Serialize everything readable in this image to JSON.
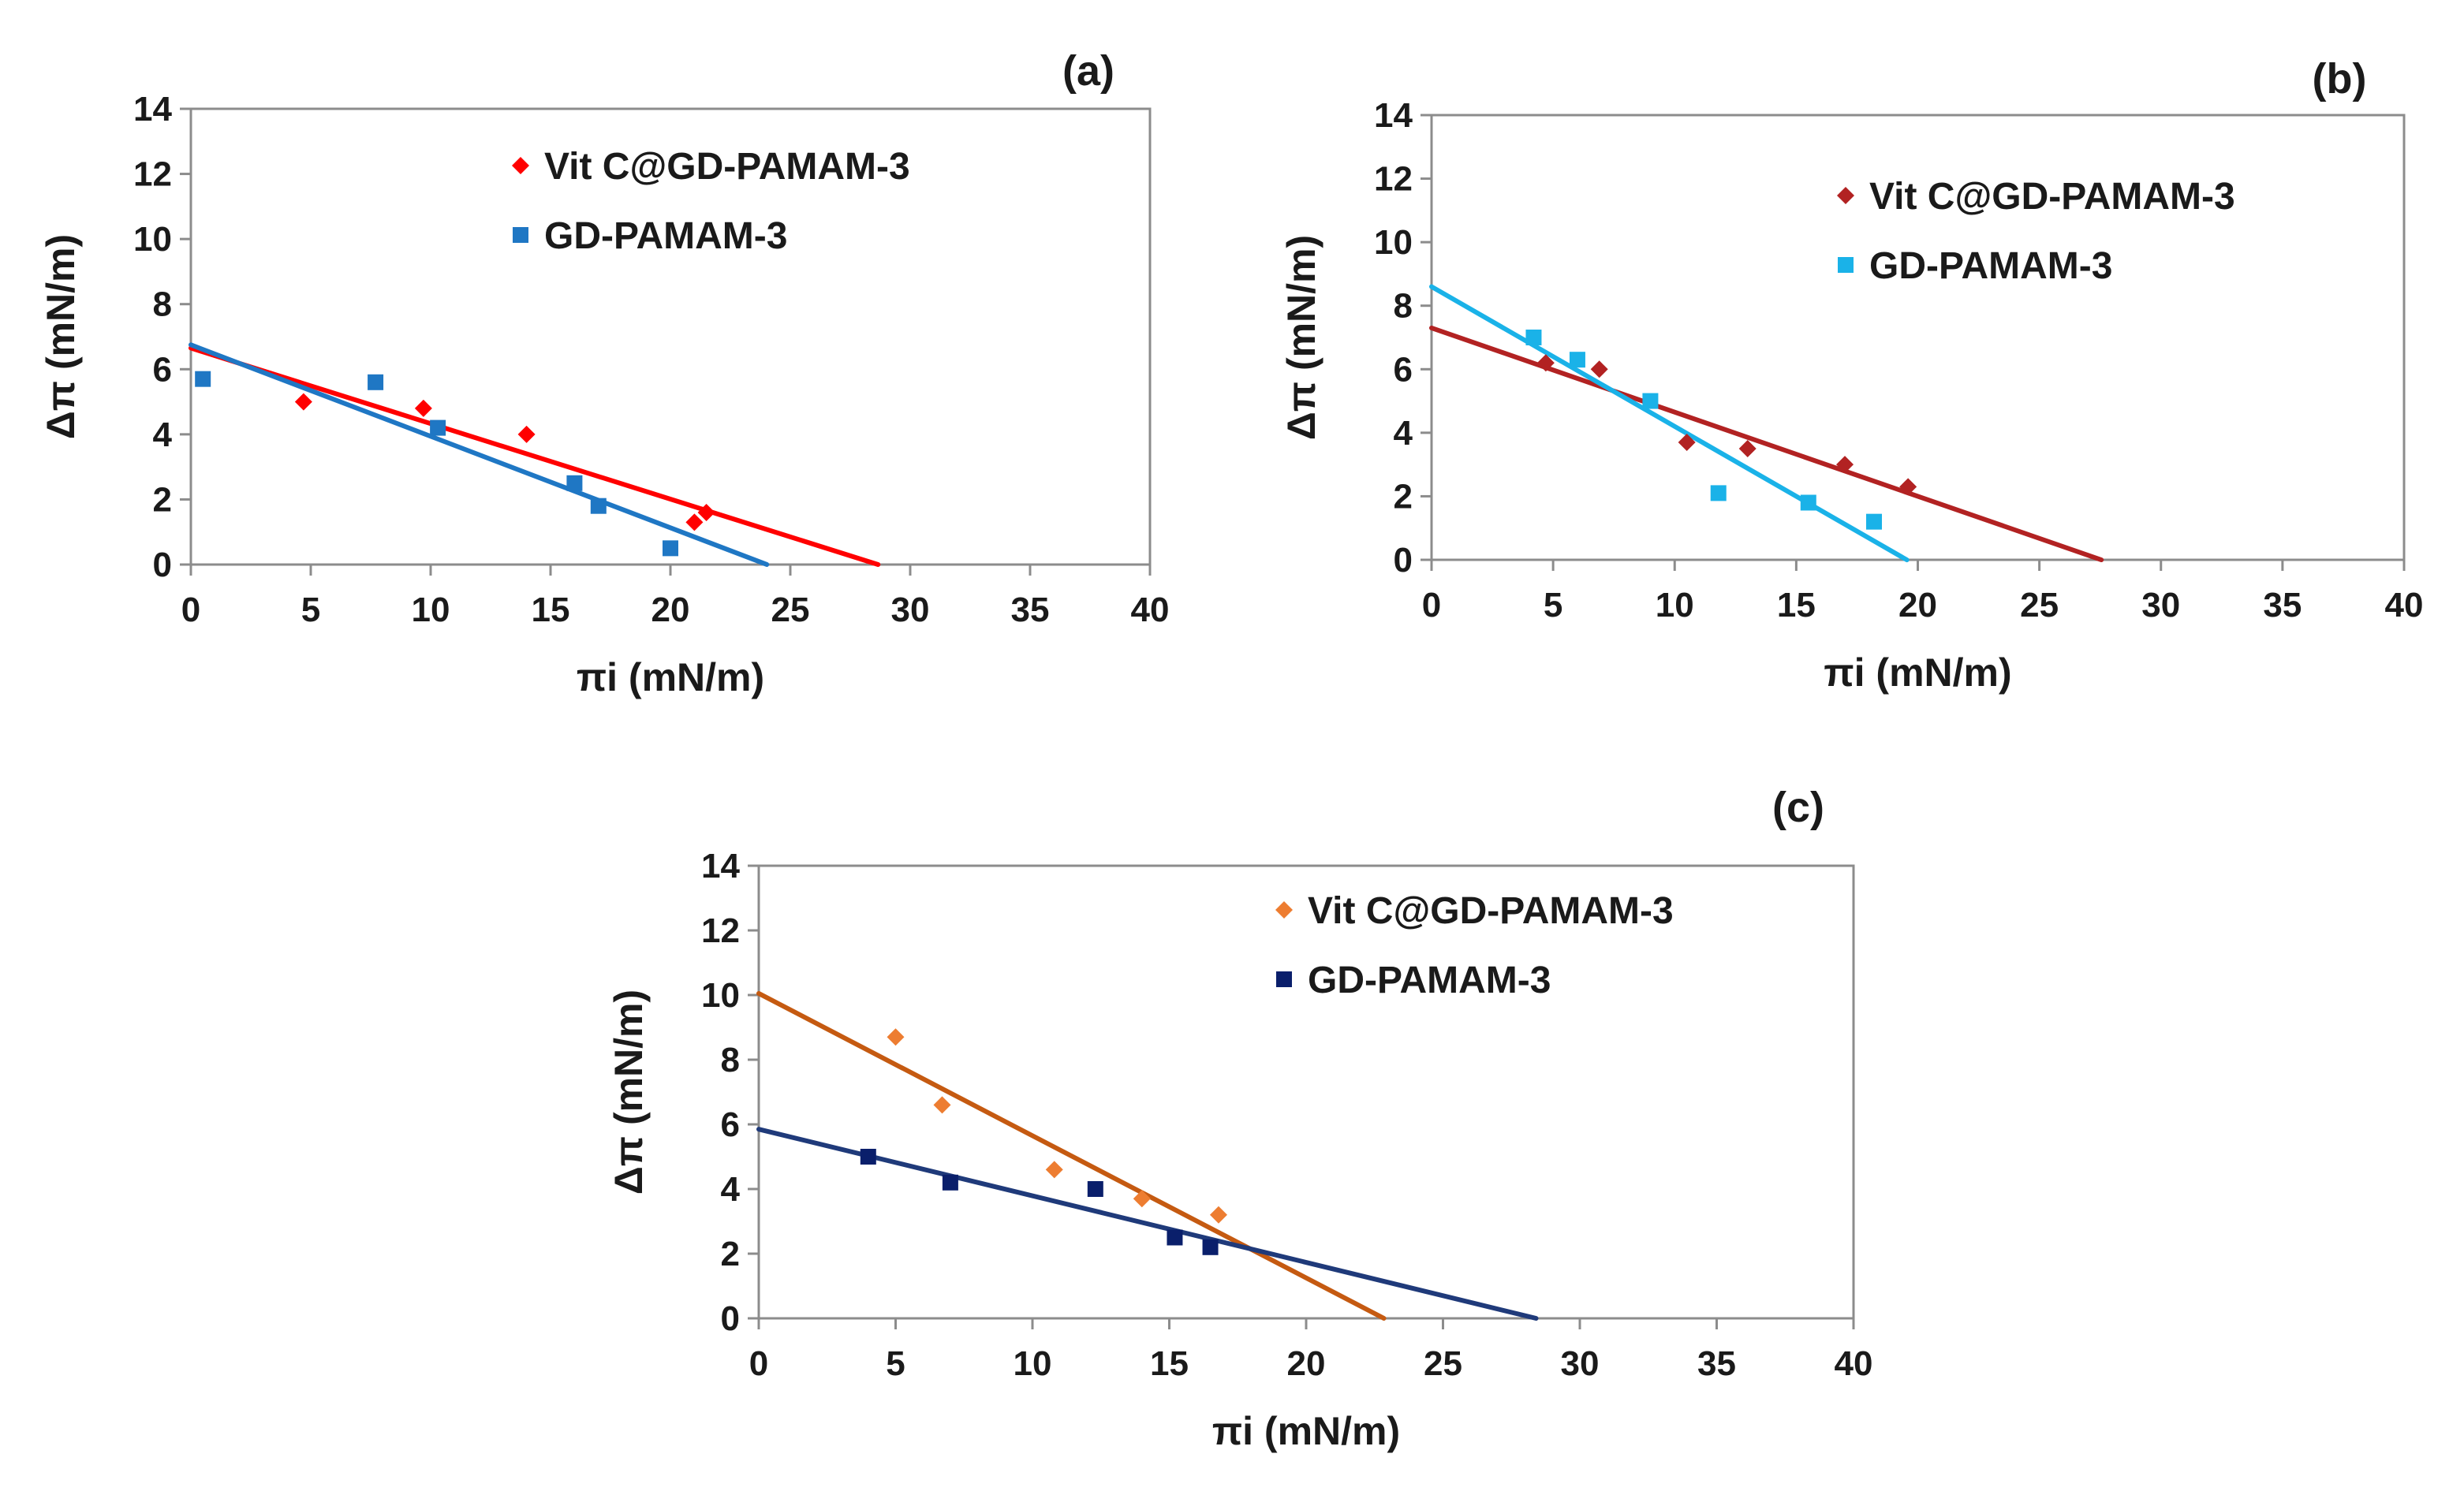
{
  "figure": {
    "panels": [
      {
        "id": "a",
        "label": "(a)"
      },
      {
        "id": "b",
        "label": "(b)"
      },
      {
        "id": "c",
        "label": "(c)"
      }
    ]
  },
  "chart_data": [
    {
      "type": "scatter",
      "panel_label": "(a)",
      "xlabel": "πi (mN/m)",
      "ylabel": "Δπ  (mN/m)",
      "xlim": [
        0,
        40
      ],
      "ylim": [
        0,
        14
      ],
      "xticks": [
        0,
        5,
        10,
        15,
        20,
        25,
        30,
        35,
        40
      ],
      "yticks": [
        0,
        2,
        4,
        6,
        8,
        10,
        12,
        14
      ],
      "grid": false,
      "legend_position": "top-center",
      "series": [
        {
          "name": "Vit C@GD-PAMAM-3",
          "color": "#ff0000",
          "marker": "diamond",
          "points": [
            [
              4.7,
              5.0
            ],
            [
              9.7,
              4.8
            ],
            [
              14.0,
              4.0
            ],
            [
              21.0,
              1.3
            ],
            [
              21.5,
              1.6
            ]
          ],
          "trendline": {
            "slope": -0.232,
            "intercept": 6.65,
            "x_start": 0,
            "x_end": 28.66
          }
        },
        {
          "name": "GD-PAMAM-3",
          "color": "#1f77c4",
          "marker": "square",
          "points": [
            [
              0.5,
              5.7
            ],
            [
              7.7,
              5.6
            ],
            [
              10.3,
              4.2
            ],
            [
              16.0,
              2.5
            ],
            [
              17.0,
              1.8
            ],
            [
              20.0,
              0.5
            ]
          ],
          "trendline": {
            "slope": -0.281,
            "intercept": 6.75,
            "x_start": 0,
            "x_end": 24.02
          }
        }
      ]
    },
    {
      "type": "scatter",
      "panel_label": "(b)",
      "xlabel": "πi (mN/m)",
      "ylabel": "Δπ  (mN/m)",
      "xlim": [
        0,
        40
      ],
      "ylim": [
        0,
        14
      ],
      "xticks": [
        0,
        5,
        10,
        15,
        20,
        25,
        30,
        35,
        40
      ],
      "yticks": [
        0,
        2,
        4,
        6,
        8,
        10,
        12,
        14
      ],
      "grid": false,
      "legend_position": "top-right",
      "series": [
        {
          "name": "Vit C@GD-PAMAM-3",
          "color": "#b22222",
          "marker": "diamond",
          "points": [
            [
              4.7,
              6.2
            ],
            [
              6.9,
              6.0
            ],
            [
              10.5,
              3.7
            ],
            [
              13.0,
              3.5
            ],
            [
              17.0,
              3.0
            ],
            [
              19.6,
              2.3
            ]
          ],
          "trendline": {
            "slope": -0.265,
            "intercept": 7.3,
            "x_start": 0,
            "x_end": 27.55
          }
        },
        {
          "name": "GD-PAMAM-3",
          "color": "#1ab2e8",
          "marker": "square",
          "points": [
            [
              4.2,
              7.0
            ],
            [
              6.0,
              6.3
            ],
            [
              9.0,
              5.0
            ],
            [
              11.8,
              2.1
            ],
            [
              15.5,
              1.8
            ],
            [
              18.2,
              1.2
            ]
          ],
          "trendline": {
            "slope": -0.44,
            "intercept": 8.6,
            "x_start": 0,
            "x_end": 19.55
          }
        }
      ]
    },
    {
      "type": "scatter",
      "panel_label": "(c)",
      "xlabel": "πi (mN/m)",
      "ylabel": "Δπ  (mN/m)",
      "xlim": [
        0,
        40
      ],
      "ylim": [
        0,
        14
      ],
      "xticks": [
        0,
        5,
        10,
        15,
        20,
        25,
        30,
        35,
        40
      ],
      "yticks": [
        0,
        2,
        4,
        6,
        8,
        10,
        12,
        14
      ],
      "grid": false,
      "legend_position": "top-right",
      "series": [
        {
          "name": "Vit C@GD-PAMAM-3",
          "color": "#ed7d31",
          "marker": "diamond",
          "points": [
            [
              5.0,
              8.7
            ],
            [
              6.7,
              6.6
            ],
            [
              10.8,
              4.6
            ],
            [
              14.0,
              3.7
            ],
            [
              16.8,
              3.2
            ]
          ],
          "trendline": {
            "slope": -0.44,
            "intercept": 10.05,
            "x_start": 0,
            "x_end": 22.84
          },
          "trendline_color": "#c55a11"
        },
        {
          "name": "GD-PAMAM-3",
          "color": "#0a1f6b",
          "marker": "square",
          "points": [
            [
              4.0,
              5.0
            ],
            [
              7.0,
              4.2
            ],
            [
              12.3,
              4.0
            ],
            [
              15.2,
              2.5
            ],
            [
              16.5,
              2.2
            ]
          ],
          "trendline": {
            "slope": -0.206,
            "intercept": 5.85,
            "x_start": 0,
            "x_end": 28.4
          },
          "trendline_color": "#1f3a7a"
        }
      ]
    }
  ]
}
